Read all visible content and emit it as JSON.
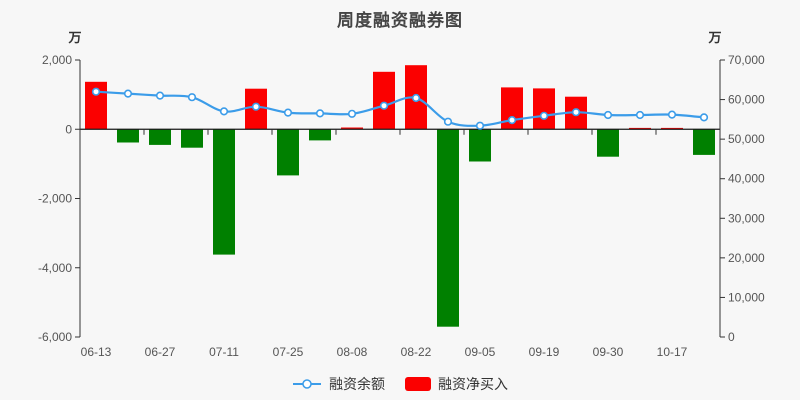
{
  "chart": {
    "title": "周度融资融券图",
    "background": "#f7f7f7",
    "left_axis": {
      "unit": "万",
      "tick_labels": [
        "2,000",
        "0",
        "-2,000",
        "-4,000",
        "-6,000"
      ],
      "tick_values": [
        2000,
        0,
        -2000,
        -4000,
        -6000
      ],
      "min": -6000,
      "max": 2000
    },
    "right_axis": {
      "unit": "万",
      "tick_labels": [
        "70,000",
        "60,000",
        "50,000",
        "40,000",
        "30,000",
        "20,000",
        "10,000",
        "0"
      ],
      "tick_values": [
        70000,
        60000,
        50000,
        40000,
        30000,
        20000,
        10000,
        0
      ],
      "min": 0,
      "max": 70000
    },
    "colors": {
      "line": "#3b9ce9",
      "bar_positive": "#fb0000",
      "bar_negative": "#008000",
      "axis_line": "#333333",
      "zero_line": "#1a1a1a",
      "tick_label": "#555555",
      "marker_fill": "#ffffff"
    }
  },
  "chart_data": {
    "type": "bar+line combo",
    "categories": [
      "06-13",
      "",
      "06-27",
      "",
      "07-11",
      "",
      "07-25",
      "",
      "08-08",
      "",
      "08-22",
      "",
      "09-05",
      "",
      "09-19",
      "",
      "09-30",
      "",
      "10-17",
      ""
    ],
    "series": [
      {
        "name": "融资余额",
        "type": "line",
        "axis": "right",
        "values": [
          62000,
          61500,
          61000,
          60600,
          57000,
          58200,
          56700,
          56500,
          56400,
          58450,
          60400,
          54400,
          53400,
          54800,
          55900,
          56800,
          56100,
          56100,
          56200,
          55500
        ]
      },
      {
        "name": "融资净买入",
        "type": "bar",
        "axis": "left",
        "values": [
          1370,
          -380,
          -450,
          -530,
          -3620,
          1170,
          -1330,
          -320,
          50,
          1660,
          1850,
          -5700,
          -930,
          1210,
          1180,
          940,
          -790,
          40,
          40,
          -740
        ]
      }
    ],
    "left_ylim": [
      -6000,
      2000
    ],
    "right_ylim": [
      0,
      70000
    ],
    "grid": "off",
    "legend_position": "bottom-center"
  },
  "legend": {
    "items": [
      {
        "label": "融资余额",
        "type": "line"
      },
      {
        "label": "融资净买入",
        "type": "bar"
      }
    ]
  }
}
